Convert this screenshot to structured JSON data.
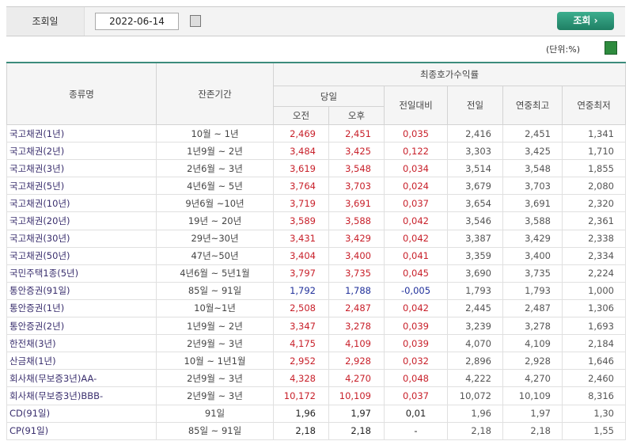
{
  "search": {
    "label": "조회일",
    "date": "2022-06-14",
    "button": "조회 ›"
  },
  "unit": "(단위:%)",
  "table": {
    "headers": {
      "name": "종류명",
      "period": "잔존기간",
      "yield": "최종호가수익률",
      "today": "당일",
      "am": "오전",
      "pm": "오후",
      "change": "전일대비",
      "prev": "전일",
      "high": "연중최고",
      "low": "연중최저"
    },
    "groups": [
      [
        {
          "color": "#c8202a",
          "cells": [
            "국고채권(1년)",
            "10월 ~ 1년",
            "2,469",
            "2,451",
            "0,035",
            "2,416",
            "2,451",
            "1,341"
          ]
        },
        {
          "color": "#c8202a",
          "cells": [
            "국고채권(2년)",
            "1년9월 ~ 2년",
            "3,484",
            "3,425",
            "0,122",
            "3,303",
            "3,425",
            "1,710"
          ]
        },
        {
          "color": "#c8202a",
          "cells": [
            "국고채권(3년)",
            "2년6월 ~ 3년",
            "3,619",
            "3,548",
            "0,034",
            "3,514",
            "3,548",
            "1,855"
          ]
        },
        {
          "color": "#c8202a",
          "cells": [
            "국고채권(5년)",
            "4년6월 ~ 5년",
            "3,764",
            "3,703",
            "0,024",
            "3,679",
            "3,703",
            "2,080"
          ]
        },
        {
          "color": "#c8202a",
          "cells": [
            "국고채권(10년)",
            "9년6월 ~10년",
            "3,719",
            "3,691",
            "0,037",
            "3,654",
            "3,691",
            "2,320"
          ]
        },
        {
          "color": "#c8202a",
          "cells": [
            "국고채권(20년)",
            "19년 ~ 20년",
            "3,589",
            "3,588",
            "0,042",
            "3,546",
            "3,588",
            "2,361"
          ]
        },
        {
          "color": "#c8202a",
          "cells": [
            "국고채권(30년)",
            "29년~30년",
            "3,431",
            "3,429",
            "0,042",
            "3,387",
            "3,429",
            "2,338"
          ]
        },
        {
          "color": "#c8202a",
          "cells": [
            "국고채권(50년)",
            "47년~50년",
            "3,404",
            "3,400",
            "0,041",
            "3,359",
            "3,400",
            "2,334"
          ]
        },
        {
          "color": "#c8202a",
          "cells": [
            "국민주택1종(5년)",
            "4년6월 ~ 5년1월",
            "3,797",
            "3,735",
            "0,045",
            "3,690",
            "3,735",
            "2,224"
          ]
        }
      ],
      [
        {
          "color": "#1f2f9a",
          "cells": [
            "통안증권(91일)",
            "85일 ~ 91일",
            "1,792",
            "1,788",
            "-0,005",
            "1,793",
            "1,793",
            "1,000"
          ]
        },
        {
          "color": "#c8202a",
          "cells": [
            "통안증권(1년)",
            "10월~1년",
            "2,508",
            "2,487",
            "0,042",
            "2,445",
            "2,487",
            "1,306"
          ]
        },
        {
          "color": "#c8202a",
          "cells": [
            "통안증권(2년)",
            "1년9월 ~ 2년",
            "3,347",
            "3,278",
            "0,039",
            "3,239",
            "3,278",
            "1,693"
          ]
        }
      ],
      [
        {
          "color": "#c8202a",
          "cells": [
            "한전채(3년)",
            "2년9월 ~ 3년",
            "4,175",
            "4,109",
            "0,039",
            "4,070",
            "4,109",
            "2,184"
          ]
        },
        {
          "color": "#c8202a",
          "cells": [
            "산금채(1년)",
            "10월 ~ 1년1월",
            "2,952",
            "2,928",
            "0,032",
            "2,896",
            "2,928",
            "1,646"
          ]
        },
        {
          "color": "#c8202a",
          "cells": [
            "회사채(무보증3년)AA-",
            "2년9월 ~ 3년",
            "4,328",
            "4,270",
            "0,048",
            "4,222",
            "4,270",
            "2,460"
          ]
        },
        {
          "color": "#c8202a",
          "cells": [
            "회사채(무보증3년)BBB-",
            "2년9월 ~ 3년",
            "10,172",
            "10,109",
            "0,037",
            "10,072",
            "10,109",
            "8,316"
          ]
        }
      ],
      [
        {
          "color": "#222222",
          "cells": [
            "CD(91일)",
            "91일",
            "1,96",
            "1,97",
            "0,01",
            "1,96",
            "1,97",
            "1,30"
          ]
        },
        {
          "color": "#222222",
          "cells": [
            "CP(91일)",
            "85일 ~ 91일",
            "2,18",
            "2,18",
            "-",
            "2,18",
            "2,18",
            "1,55"
          ]
        }
      ]
    ]
  }
}
